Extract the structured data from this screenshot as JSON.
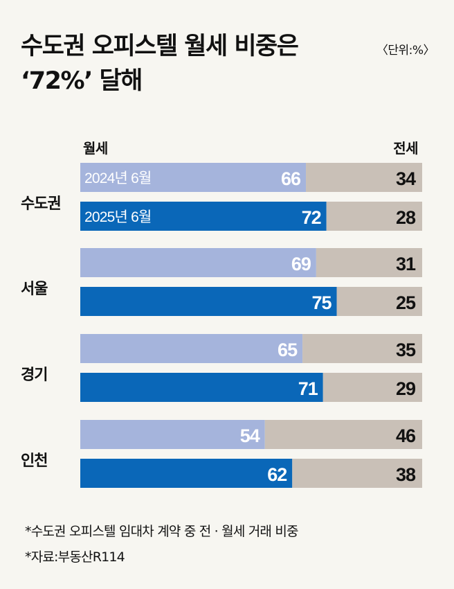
{
  "title_line1": "수도권 오피스텔 월세 비중은",
  "title_line2": "‘72%’ 달해",
  "unit": "〈단위:%〉",
  "col_left": "월세",
  "col_right": "전세",
  "footnotes": [
    "*수도권 오피스텔 임대차 계약 중 전 · 월세 거래 비중",
    "*자료:부동산R114"
  ],
  "colors": {
    "y2024": "#a5b4dc",
    "y2025": "#0a67b8",
    "jeonse": "#c9c0b7"
  },
  "chart_data": {
    "type": "bar",
    "orientation": "horizontal",
    "stacked": true,
    "categories": [
      "수도권",
      "서울",
      "경기",
      "인천"
    ],
    "series_labels": [
      "2024년 6월",
      "2025년 6월"
    ],
    "groups": [
      {
        "region": "수도권",
        "rows": [
          {
            "period": "2024년 6월",
            "wolse": 66,
            "jeonse": 34
          },
          {
            "period": "2025년 6월",
            "wolse": 72,
            "jeonse": 28
          }
        ]
      },
      {
        "region": "서울",
        "rows": [
          {
            "period": "2024년 6월",
            "wolse": 69,
            "jeonse": 31
          },
          {
            "period": "2025년 6월",
            "wolse": 75,
            "jeonse": 25
          }
        ]
      },
      {
        "region": "경기",
        "rows": [
          {
            "period": "2024년 6월",
            "wolse": 65,
            "jeonse": 35
          },
          {
            "period": "2025년 6월",
            "wolse": 71,
            "jeonse": 29
          }
        ]
      },
      {
        "region": "인천",
        "rows": [
          {
            "period": "2024년 6월",
            "wolse": 54,
            "jeonse": 46
          },
          {
            "period": "2025년 6월",
            "wolse": 62,
            "jeonse": 38
          }
        ]
      }
    ],
    "xlim": [
      0,
      100
    ]
  }
}
